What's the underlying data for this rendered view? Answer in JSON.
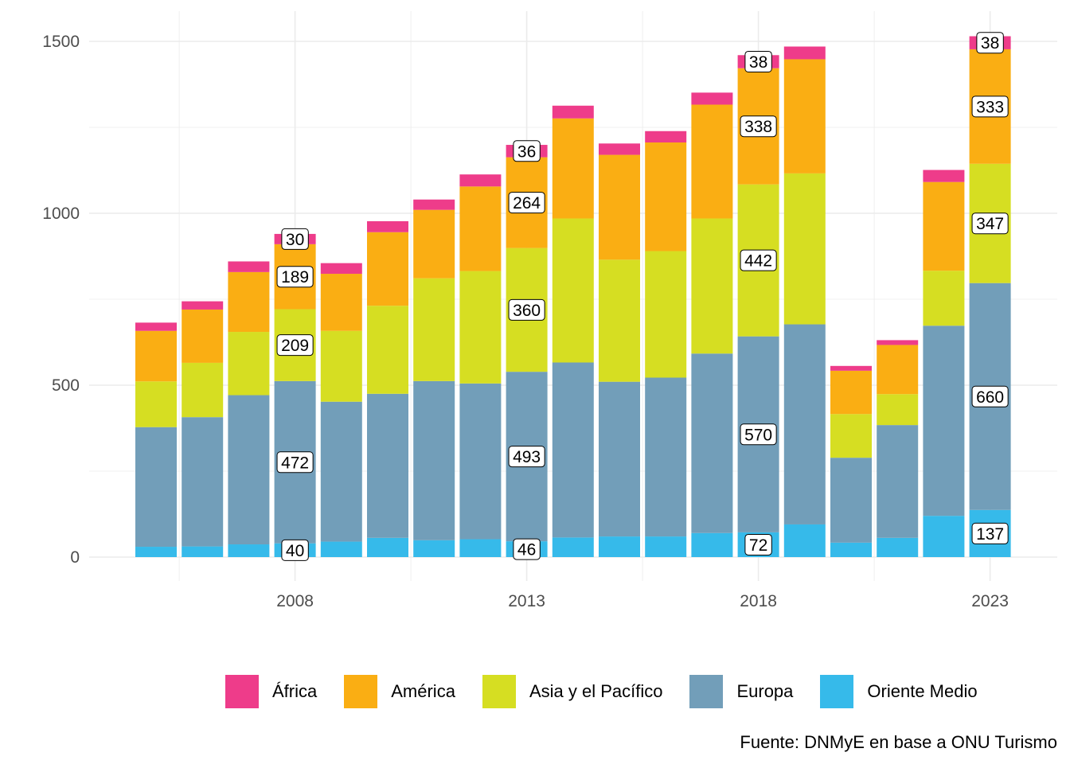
{
  "chart_data": {
    "type": "bar",
    "stacked": true,
    "x": [
      2005,
      2006,
      2007,
      2008,
      2009,
      2010,
      2011,
      2012,
      2013,
      2014,
      2015,
      2016,
      2017,
      2018,
      2019,
      2020,
      2021,
      2022,
      2023
    ],
    "x_ticks": [
      "2008",
      "2013",
      "2018",
      "2023"
    ],
    "y_ticks": [
      "0",
      "500",
      "1000",
      "1500"
    ],
    "ylim": [
      -70,
      1580
    ],
    "grid": true,
    "legend_position": "bottom",
    "series": [
      {
        "name": "Oriente Medio",
        "color": "#36BAEA",
        "values": [
          30,
          31,
          37,
          40,
          45,
          56,
          49,
          52,
          46,
          57,
          60,
          60,
          70,
          72,
          95,
          42,
          56,
          120,
          137
        ]
      },
      {
        "name": "Europa",
        "color": "#729EB9",
        "values": [
          348,
          376,
          434,
          472,
          407,
          419,
          463,
          453,
          493,
          509,
          450,
          462,
          522,
          570,
          582,
          247,
          328,
          553,
          660
        ]
      },
      {
        "name": "Asia y el Pacífico",
        "color": "#D6DE22",
        "values": [
          133,
          158,
          184,
          209,
          206,
          256,
          299,
          327,
          360,
          419,
          355,
          368,
          393,
          442,
          439,
          127,
          90,
          160,
          347
        ]
      },
      {
        "name": "América",
        "color": "#FAAE13",
        "values": [
          147,
          155,
          174,
          189,
          166,
          214,
          199,
          246,
          264,
          291,
          305,
          316,
          331,
          338,
          332,
          126,
          143,
          258,
          333
        ]
      },
      {
        "name": "África",
        "color": "#EE3C8A",
        "values": [
          24,
          24,
          31,
          30,
          31,
          32,
          30,
          35,
          36,
          37,
          33,
          33,
          35,
          38,
          37,
          14,
          14,
          35,
          38
        ]
      }
    ],
    "labels": {
      "2008": {
        "Oriente Medio": "40",
        "Europa": "472",
        "Asia y el Pacífico": "209",
        "América": "189",
        "África": "30"
      },
      "2013": {
        "Oriente Medio": "46",
        "Europa": "493",
        "Asia y el Pacífico": "360",
        "América": "264",
        "África": "36"
      },
      "2018": {
        "Oriente Medio": "72",
        "Europa": "570",
        "Asia y el Pacífico": "442",
        "América": "338",
        "África": "38"
      },
      "2023": {
        "Oriente Medio": "137",
        "Europa": "660",
        "Asia y el Pacífico": "347",
        "América": "333",
        "África": "38"
      }
    },
    "legend_order": [
      "África",
      "América",
      "Asia y el Pacífico",
      "Europa",
      "Oriente Medio"
    ],
    "caption": "Fuente: DNMyE en base a ONU Turismo"
  }
}
